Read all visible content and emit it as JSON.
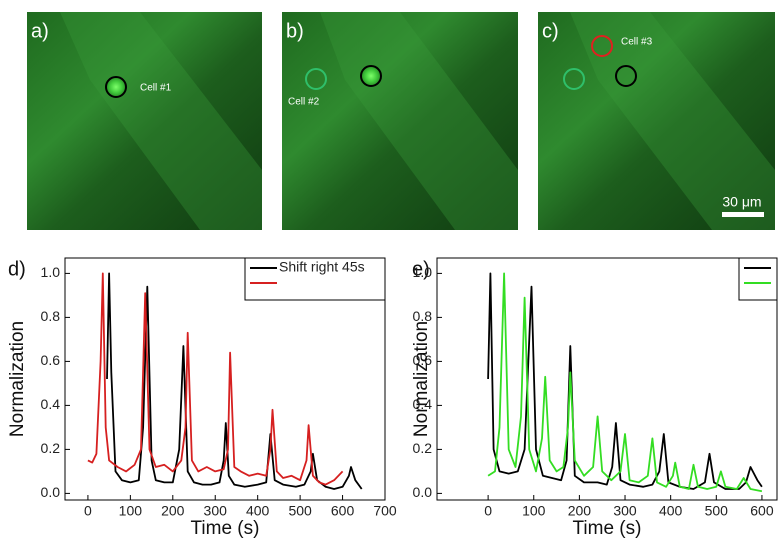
{
  "images": [
    {
      "label": "a)",
      "cells": [
        "Cell #1"
      ]
    },
    {
      "label": "b)",
      "cells": [
        "Cell #2"
      ]
    },
    {
      "label": "c)",
      "cells": [
        "Cell #3"
      ],
      "scale_bar": "30 μm"
    }
  ],
  "chart_data": [
    {
      "type": "line",
      "panel_label": "d)",
      "x_label": "Time (s)",
      "y_label": "Normalization",
      "xlim": [
        -54,
        700
      ],
      "xticks": [
        0,
        100,
        200,
        300,
        400,
        500,
        600,
        700
      ],
      "ylim": [
        -0.03,
        1.07
      ],
      "yticks": [
        {
          "value": 0,
          "label": "0.0"
        },
        {
          "value": 0.2,
          "label": "0.2"
        },
        {
          "value": 0.4,
          "label": "0.4"
        },
        {
          "value": 0.6,
          "label": "0.6"
        },
        {
          "value": 0.8,
          "label": "0.8"
        },
        {
          "value": 1,
          "label": "1.0"
        }
      ],
      "legend": "upper right",
      "series": [
        {
          "name": "Shift right 45s",
          "color": "#000000",
          "x": [
            45,
            50,
            55,
            65,
            80,
            100,
            120,
            130,
            140,
            150,
            160,
            180,
            200,
            215,
            225,
            235,
            250,
            270,
            290,
            310,
            320,
            325,
            332,
            345,
            370,
            400,
            420,
            430,
            440,
            460,
            490,
            510,
            525,
            530,
            540,
            560,
            580,
            600,
            615,
            620,
            630,
            645
          ],
          "values": [
            0.52,
            1.0,
            0.55,
            0.1,
            0.06,
            0.05,
            0.06,
            0.3,
            0.94,
            0.15,
            0.06,
            0.05,
            0.05,
            0.2,
            0.67,
            0.1,
            0.05,
            0.04,
            0.04,
            0.05,
            0.15,
            0.32,
            0.08,
            0.04,
            0.03,
            0.04,
            0.05,
            0.27,
            0.06,
            0.04,
            0.03,
            0.04,
            0.1,
            0.18,
            0.06,
            0.03,
            0.02,
            0.03,
            0.08,
            0.12,
            0.06,
            0.02
          ]
        },
        {
          "color": "#d62020",
          "x": [
            0,
            10,
            20,
            30,
            35,
            42,
            50,
            70,
            90,
            110,
            125,
            135,
            145,
            160,
            180,
            200,
            220,
            230,
            235,
            245,
            260,
            280,
            300,
            320,
            330,
            335,
            345,
            360,
            380,
            400,
            420,
            430,
            435,
            445,
            460,
            480,
            500,
            515,
            520,
            530,
            545,
            560,
            580,
            600
          ],
          "values": [
            0.15,
            0.14,
            0.18,
            0.6,
            1.0,
            0.3,
            0.15,
            0.12,
            0.1,
            0.13,
            0.2,
            0.91,
            0.2,
            0.12,
            0.13,
            0.1,
            0.15,
            0.3,
            0.73,
            0.15,
            0.1,
            0.12,
            0.1,
            0.11,
            0.2,
            0.64,
            0.12,
            0.1,
            0.08,
            0.09,
            0.08,
            0.2,
            0.38,
            0.1,
            0.07,
            0.08,
            0.06,
            0.15,
            0.31,
            0.08,
            0.05,
            0.04,
            0.06,
            0.1
          ]
        }
      ]
    },
    {
      "type": "line",
      "panel_label": "e)",
      "x_label": "Time (s)",
      "y_label": "Normalization",
      "xlim": [
        -112,
        633
      ],
      "xticks": [
        0,
        100,
        200,
        300,
        400,
        500,
        600
      ],
      "ylim": [
        -0.03,
        1.07
      ],
      "yticks": [
        {
          "value": 0,
          "label": "0.0"
        },
        {
          "value": 0.2,
          "label": "0.2"
        },
        {
          "value": 0.4,
          "label": "0.4"
        },
        {
          "value": 0.6,
          "label": "0.6"
        },
        {
          "value": 0.8,
          "label": "0.8"
        },
        {
          "value": 1,
          "label": "1.0"
        }
      ],
      "legend": "upper right",
      "series": [
        {
          "color": "#000000",
          "x": [
            0,
            5,
            12,
            25,
            45,
            65,
            80,
            95,
            105,
            120,
            140,
            160,
            172,
            180,
            190,
            210,
            240,
            260,
            272,
            280,
            290,
            310,
            340,
            360,
            375,
            385,
            395,
            420,
            450,
            475,
            485,
            495,
            520,
            550,
            565,
            575,
            590,
            600
          ],
          "values": [
            0.52,
            1.0,
            0.2,
            0.1,
            0.09,
            0.1,
            0.2,
            0.94,
            0.2,
            0.08,
            0.07,
            0.06,
            0.15,
            0.67,
            0.08,
            0.05,
            0.05,
            0.04,
            0.12,
            0.32,
            0.06,
            0.04,
            0.03,
            0.04,
            0.1,
            0.27,
            0.05,
            0.03,
            0.02,
            0.05,
            0.18,
            0.05,
            0.02,
            0.02,
            0.05,
            0.12,
            0.06,
            0.03
          ]
        },
        {
          "color": "#33dd22",
          "x": [
            0,
            15,
            25,
            35,
            45,
            60,
            72,
            80,
            90,
            105,
            118,
            125,
            135,
            150,
            165,
            175,
            180,
            190,
            210,
            230,
            240,
            250,
            270,
            290,
            300,
            310,
            330,
            350,
            360,
            370,
            390,
            405,
            410,
            420,
            440,
            450,
            460,
            480,
            500,
            510,
            520,
            545,
            560,
            575,
            600
          ],
          "values": [
            0.08,
            0.1,
            0.3,
            1.0,
            0.2,
            0.12,
            0.35,
            0.89,
            0.2,
            0.1,
            0.25,
            0.53,
            0.15,
            0.1,
            0.12,
            0.3,
            0.55,
            0.15,
            0.08,
            0.12,
            0.35,
            0.1,
            0.06,
            0.1,
            0.27,
            0.06,
            0.05,
            0.08,
            0.25,
            0.05,
            0.03,
            0.08,
            0.14,
            0.03,
            0.02,
            0.13,
            0.03,
            0.02,
            0.03,
            0.1,
            0.03,
            0.02,
            0.07,
            0.02,
            0.01
          ]
        }
      ]
    }
  ]
}
